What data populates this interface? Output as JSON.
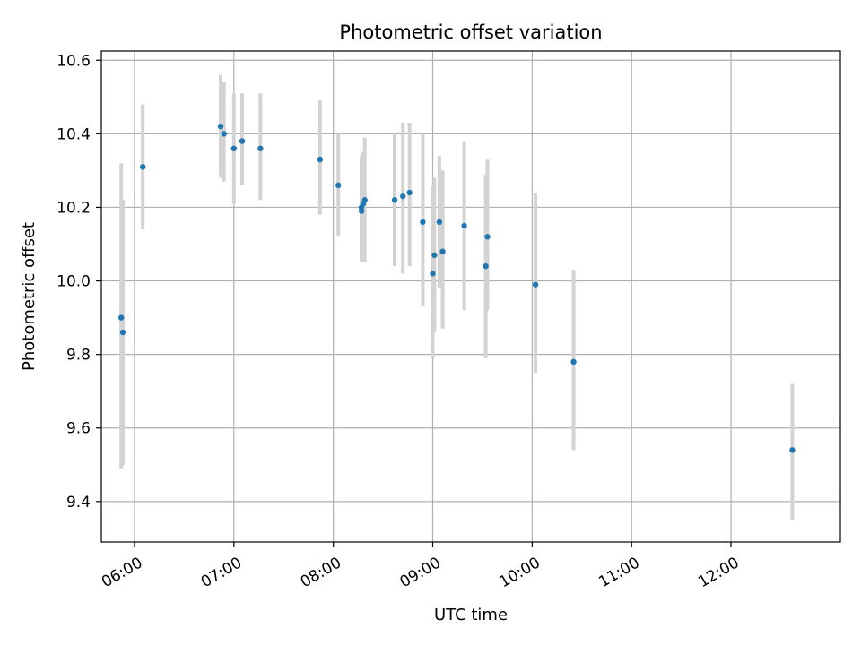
{
  "chart_data": {
    "type": "scatter",
    "title": "Photometric offset variation",
    "xlabel": "UTC time",
    "ylabel": "Photometric offset",
    "x_ticks": [
      "06:00",
      "07:00",
      "08:00",
      "09:00",
      "10:00",
      "11:00",
      "12:00"
    ],
    "y_ticks": [
      "9.4",
      "9.6",
      "9.8",
      "10.0",
      "10.2",
      "10.4",
      "10.6"
    ],
    "xlim": [
      "05:40",
      "13:06"
    ],
    "ylim": [
      9.29,
      10.625
    ],
    "grid": true,
    "colors": {
      "point": "#1f77b4",
      "errorbar": "#d3d3d3",
      "grid": "#b0b0b0"
    },
    "points": [
      {
        "x": "05:52",
        "y": 9.9,
        "yerr_low": 9.49,
        "yerr_high": 10.32
      },
      {
        "x": "05:53",
        "y": 9.86,
        "yerr_low": 9.5,
        "yerr_high": 10.22
      },
      {
        "x": "06:05",
        "y": 10.31,
        "yerr_low": 10.14,
        "yerr_high": 10.48
      },
      {
        "x": "06:52",
        "y": 10.42,
        "yerr_low": 10.28,
        "yerr_high": 10.56
      },
      {
        "x": "06:54",
        "y": 10.4,
        "yerr_low": 10.27,
        "yerr_high": 10.54
      },
      {
        "x": "07:00",
        "y": 10.36,
        "yerr_low": 10.21,
        "yerr_high": 10.51
      },
      {
        "x": "07:05",
        "y": 10.38,
        "yerr_low": 10.26,
        "yerr_high": 10.51
      },
      {
        "x": "07:16",
        "y": 10.36,
        "yerr_low": 10.22,
        "yerr_high": 10.51
      },
      {
        "x": "07:52",
        "y": 10.33,
        "yerr_low": 10.18,
        "yerr_high": 10.49
      },
      {
        "x": "08:03",
        "y": 10.26,
        "yerr_low": 10.12,
        "yerr_high": 10.4
      },
      {
        "x": "08:17",
        "y": 10.2,
        "yerr_low": 10.06,
        "yerr_high": 10.34
      },
      {
        "x": "08:17",
        "y": 10.19,
        "yerr_low": 10.05,
        "yerr_high": 10.33
      },
      {
        "x": "08:18",
        "y": 10.21,
        "yerr_low": 10.07,
        "yerr_high": 10.35
      },
      {
        "x": "08:19",
        "y": 10.22,
        "yerr_low": 10.05,
        "yerr_high": 10.39
      },
      {
        "x": "08:37",
        "y": 10.22,
        "yerr_low": 10.04,
        "yerr_high": 10.4
      },
      {
        "x": "08:42",
        "y": 10.23,
        "yerr_low": 10.02,
        "yerr_high": 10.43
      },
      {
        "x": "08:46",
        "y": 10.24,
        "yerr_low": 10.04,
        "yerr_high": 10.43
      },
      {
        "x": "08:54",
        "y": 10.16,
        "yerr_low": 9.93,
        "yerr_high": 10.4
      },
      {
        "x": "09:00",
        "y": 10.02,
        "yerr_low": 9.79,
        "yerr_high": 10.26
      },
      {
        "x": "09:01",
        "y": 10.07,
        "yerr_low": 9.86,
        "yerr_high": 10.28
      },
      {
        "x": "09:04",
        "y": 10.16,
        "yerr_low": 9.98,
        "yerr_high": 10.34
      },
      {
        "x": "09:06",
        "y": 10.08,
        "yerr_low": 9.87,
        "yerr_high": 10.3
      },
      {
        "x": "09:19",
        "y": 10.15,
        "yerr_low": 9.92,
        "yerr_high": 10.38
      },
      {
        "x": "09:32",
        "y": 10.04,
        "yerr_low": 9.79,
        "yerr_high": 10.29
      },
      {
        "x": "09:33",
        "y": 10.12,
        "yerr_low": 9.92,
        "yerr_high": 10.33
      },
      {
        "x": "10:02",
        "y": 9.99,
        "yerr_low": 9.75,
        "yerr_high": 10.24
      },
      {
        "x": "10:25",
        "y": 9.78,
        "yerr_low": 9.54,
        "yerr_high": 10.03
      },
      {
        "x": "12:37",
        "y": 9.54,
        "yerr_low": 9.35,
        "yerr_high": 9.72
      }
    ]
  }
}
